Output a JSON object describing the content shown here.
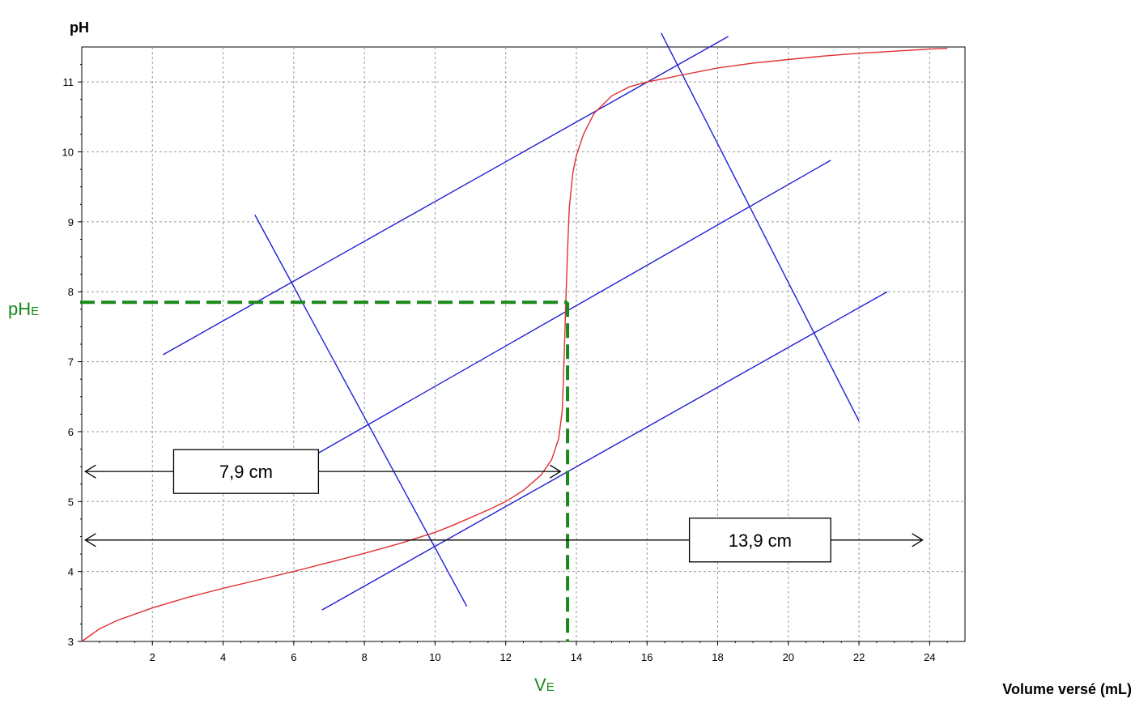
{
  "chart_data": {
    "type": "line",
    "title": "",
    "xlabel": "Volume versé (mL)",
    "ylabel": "pH",
    "xlim": [
      0,
      25
    ],
    "ylim": [
      3,
      11.5
    ],
    "x_ticks": [
      2,
      4,
      6,
      8,
      10,
      12,
      14,
      16,
      18,
      20,
      22,
      24
    ],
    "y_ticks": [
      3,
      4,
      5,
      6,
      7,
      8,
      9,
      10,
      11
    ],
    "grid": true,
    "series": [
      {
        "name": "",
        "color": "#e03030",
        "x": [
          0,
          0.5,
          1,
          2,
          3,
          4,
          5,
          6,
          7,
          8,
          9,
          10,
          10.5,
          11,
          11.5,
          12,
          12.5,
          13,
          13.3,
          13.5,
          13.6,
          13.65,
          13.7,
          13.75,
          13.8,
          13.9,
          14,
          14.2,
          14.5,
          15,
          15.5,
          16,
          16.5,
          17,
          18,
          19,
          20,
          21,
          22,
          23,
          24,
          24.5
        ],
        "y": [
          3.0,
          3.18,
          3.3,
          3.48,
          3.63,
          3.76,
          3.88,
          4.0,
          4.13,
          4.26,
          4.4,
          4.56,
          4.66,
          4.77,
          4.88,
          5.0,
          5.16,
          5.38,
          5.6,
          5.9,
          6.3,
          7.0,
          7.85,
          8.6,
          9.2,
          9.7,
          9.95,
          10.25,
          10.55,
          10.8,
          10.93,
          11.0,
          11.05,
          11.1,
          11.2,
          11.27,
          11.32,
          11.37,
          11.41,
          11.44,
          11.47,
          11.48
        ]
      }
    ],
    "construction_lines": {
      "color": "#1f1fd6",
      "parallel": [
        {
          "x": [
            2.3,
            18.3
          ],
          "y": [
            7.1,
            11.65
          ]
        },
        {
          "x": [
            6.2,
            21.2
          ],
          "y": [
            5.55,
            9.88
          ]
        },
        {
          "x": [
            6.8,
            22.8
          ],
          "y": [
            3.45,
            8.0
          ]
        }
      ],
      "perpendicular": [
        {
          "x": [
            4.9,
            10.9
          ],
          "y": [
            9.1,
            3.5
          ]
        },
        {
          "x": [
            16.4,
            22.0
          ],
          "y": [
            11.7,
            6.15
          ]
        }
      ]
    },
    "equivalence": {
      "color": "#1a8a1a",
      "VE": 13.75,
      "pHE": 7.85,
      "x_label": "VE",
      "y_label": "pHE"
    },
    "measurements": [
      {
        "label": "7,9 cm",
        "y": 5.43,
        "x_from": 0.1,
        "x_to": 13.55,
        "box_x": [
          2.6,
          6.7
        ]
      },
      {
        "label": "13,9 cm",
        "y": 4.45,
        "x_from": 0.1,
        "x_to": 23.8,
        "box_x": [
          17.2,
          21.2
        ]
      }
    ]
  }
}
